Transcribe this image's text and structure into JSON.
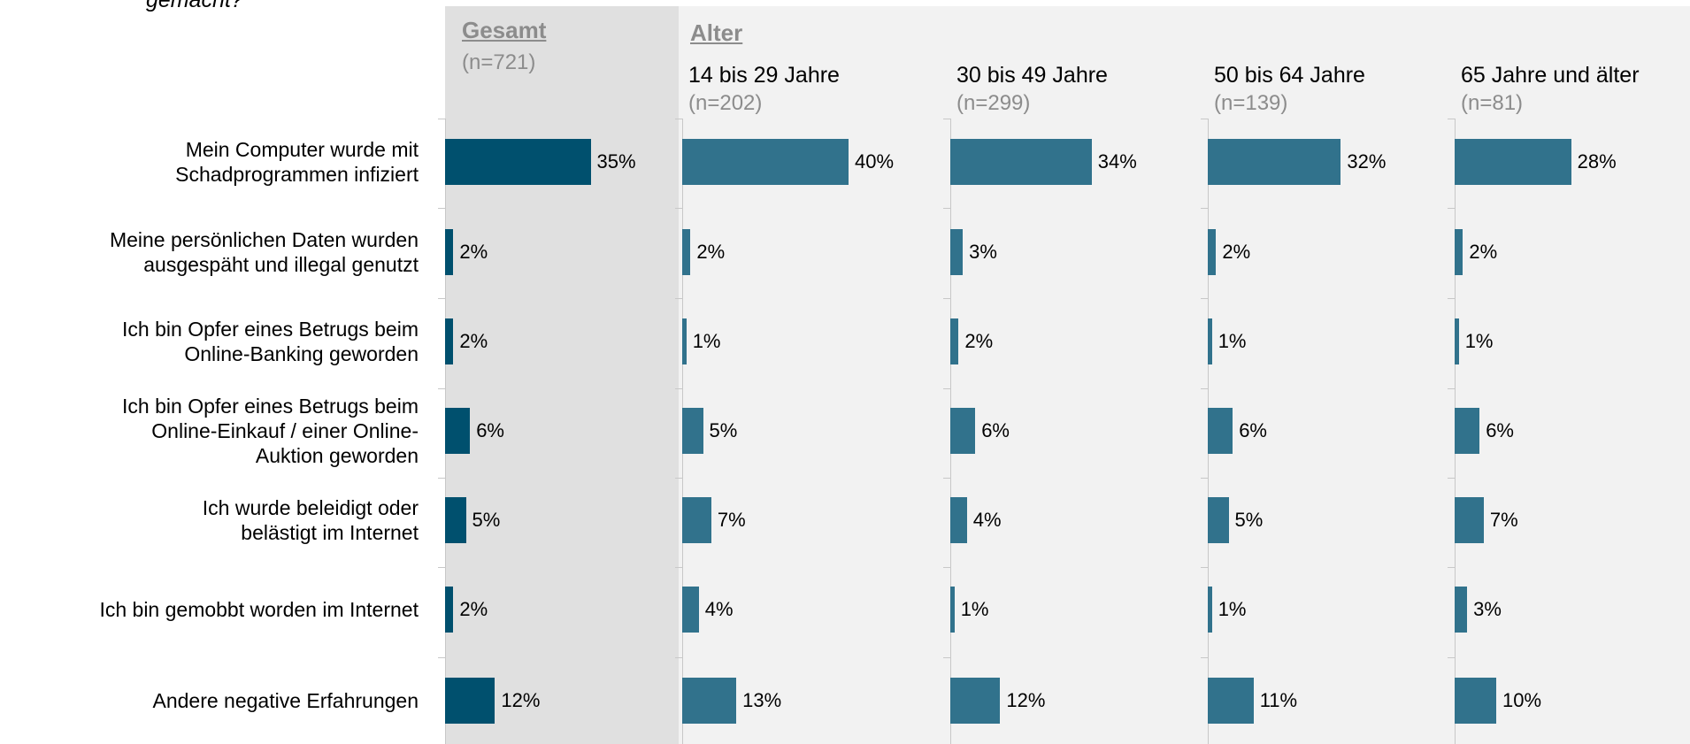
{
  "chart_data": {
    "type": "bar",
    "title": "gemacht?",
    "group_label": "Alter",
    "categories": [
      "Mein Computer wurde mit\nSchadprogrammen infiziert",
      "Meine persönlichen Daten wurden\nausgespäht und illegal genutzt",
      "Ich bin Opfer eines Betrugs beim\nOnline-Banking geworden",
      "Ich bin Opfer eines Betrugs beim\nOnline-Einkauf / einer Online-\nAuktion geworden",
      "Ich wurde beleidigt oder\nbelästigt im Internet",
      "Ich bin gemobbt worden im Internet",
      "Andere negative Erfahrungen"
    ],
    "xlim": [
      0,
      50
    ],
    "series": [
      {
        "name": "Gesamt",
        "sample": "(n=721)",
        "color": "#00506e",
        "values": [
          35,
          2,
          2,
          6,
          5,
          2,
          12
        ],
        "value_labels": [
          "35%",
          "2%",
          "2%",
          "6%",
          "5%",
          "2%",
          "12%"
        ]
      },
      {
        "name": "14 bis 29 Jahre",
        "sample": "(n=202)",
        "color": "#31728c",
        "values": [
          40,
          2,
          1,
          5,
          7,
          4,
          13
        ],
        "value_labels": [
          "40%",
          "2%",
          "1%",
          "5%",
          "7%",
          "4%",
          "13%"
        ]
      },
      {
        "name": "30 bis 49 Jahre",
        "sample": "(n=299)",
        "color": "#31728c",
        "values": [
          34,
          3,
          2,
          6,
          4,
          1,
          12
        ],
        "value_labels": [
          "34%",
          "3%",
          "2%",
          "6%",
          "4%",
          "1%",
          "12%"
        ]
      },
      {
        "name": "50 bis 64 Jahre",
        "sample": "(n=139)",
        "color": "#31728c",
        "values": [
          32,
          2,
          1,
          6,
          5,
          1,
          11
        ],
        "value_labels": [
          "32%",
          "2%",
          "1%",
          "6%",
          "5%",
          "1%",
          "11%"
        ]
      },
      {
        "name": "65 Jahre und älter",
        "sample": "(n=81)",
        "color": "#31728c",
        "values": [
          28,
          2,
          1,
          6,
          7,
          3,
          10
        ],
        "value_labels": [
          "28%",
          "2%",
          "1%",
          "6%",
          "7%",
          "3%",
          "10%"
        ]
      }
    ]
  }
}
